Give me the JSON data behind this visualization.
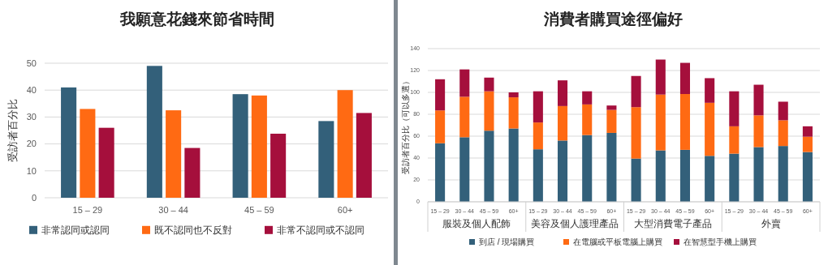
{
  "chart_data": [
    {
      "type": "bar",
      "title": "我願意花錢來節省時間",
      "ylabel": "受訪者百分比",
      "categories": [
        "15 – 29",
        "30 – 44",
        "45 – 59",
        "60+"
      ],
      "ylim": [
        0,
        50
      ],
      "yticks": [
        0,
        10,
        20,
        30,
        40,
        50
      ],
      "grid": "y",
      "legend": "bottom",
      "series": [
        {
          "name": "非常認同或認同",
          "color": "#33607a",
          "values": [
            41,
            49,
            38.5,
            28.5
          ]
        },
        {
          "name": "既不認同也不反對",
          "color": "#ff6a13",
          "values": [
            33,
            32.5,
            38,
            40
          ]
        },
        {
          "name": "非常不認同或不認同",
          "color": "#a50f3c",
          "values": [
            26,
            18.5,
            23.8,
            31.5
          ]
        }
      ]
    },
    {
      "type": "bar",
      "stacked": true,
      "title": "消費者購買途徑偏好",
      "ylabel": "受訪者百分比（可以多選）",
      "categories": [
        "15 – 29",
        "30 – 44",
        "45 – 59",
        "60+",
        "15 – 29",
        "30 – 44",
        "45 – 59",
        "60+",
        "15 – 29",
        "30 – 44",
        "45 – 59",
        "60+",
        "15 – 29",
        "30 – 44",
        "45 – 59",
        "60+"
      ],
      "annotations": [
        "服裝及個人配飾",
        "美容及個人護理產品",
        "大型消費電子產品",
        "外賣"
      ],
      "ylim": [
        0,
        140
      ],
      "yticks": [
        0,
        20,
        40,
        60,
        80,
        100,
        120,
        140
      ],
      "grid": "y",
      "legend": "bottom",
      "series": [
        {
          "name": "到店 / 現場購買",
          "color": "#33607a",
          "values": [
            53.5,
            59,
            65,
            67,
            48,
            56,
            61,
            63,
            39.5,
            47,
            47.5,
            42,
            44,
            50,
            51,
            45.5
          ]
        },
        {
          "name": "在電腦或平板電腦上購買",
          "color": "#ff6a13",
          "values": [
            30,
            37,
            36,
            28.5,
            24.5,
            31.5,
            28,
            21,
            47,
            51,
            51,
            48.5,
            25,
            29,
            23.5,
            14
          ]
        },
        {
          "name": "在智慧型手機上購買",
          "color": "#a50f3c",
          "values": [
            28.5,
            25,
            12.5,
            4.5,
            28.5,
            23.5,
            12,
            4,
            28.5,
            32,
            28.5,
            22.5,
            32,
            28,
            17,
            9.5
          ]
        }
      ]
    }
  ]
}
